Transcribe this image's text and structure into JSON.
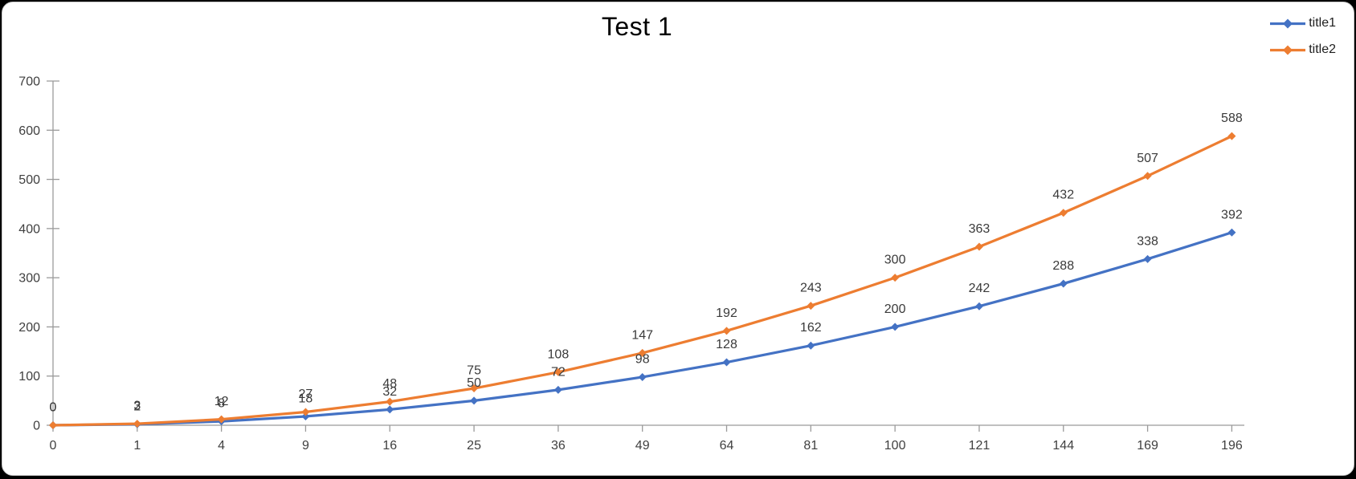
{
  "window": {
    "surface_color": "#ffffff",
    "frame_color": "#c9c9c9"
  },
  "chart_data": {
    "type": "line",
    "title": "Test 1",
    "categories": [
      0,
      1,
      4,
      9,
      16,
      25,
      36,
      49,
      64,
      81,
      100,
      121,
      144,
      169,
      196
    ],
    "series": [
      {
        "name": "title1",
        "color": "#4472C4",
        "marker": "diamond",
        "values": [
          0,
          2,
          8,
          18,
          32,
          50,
          72,
          98,
          128,
          162,
          200,
          242,
          288,
          338,
          392
        ]
      },
      {
        "name": "title2",
        "color": "#ED7D31",
        "marker": "diamond",
        "values": [
          0,
          3,
          12,
          27,
          48,
          75,
          108,
          147,
          192,
          243,
          300,
          363,
          432,
          507,
          588
        ]
      }
    ],
    "xlabel": "",
    "ylabel": "",
    "ylim": [
      0,
      700
    ],
    "y_ticks": [
      0,
      100,
      200,
      300,
      400,
      500,
      600,
      700
    ],
    "grid": false,
    "data_labels_position": "above",
    "legend_position": "top-right",
    "axis_color": "#9a9a9a",
    "tick_label_color": "#404040",
    "data_label_color": "#3a3a3a"
  }
}
